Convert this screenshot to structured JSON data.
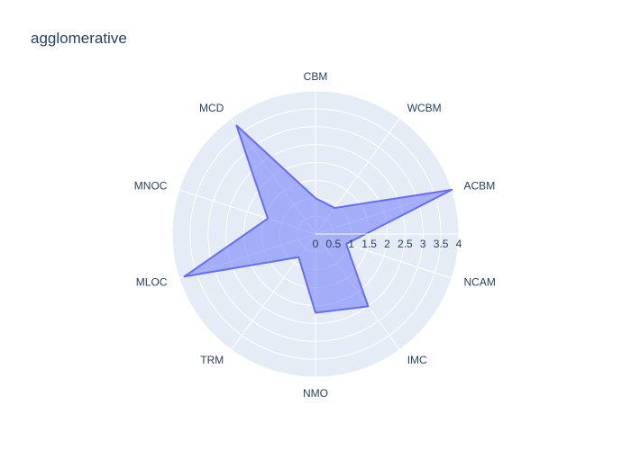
{
  "chart_data": {
    "type": "radar",
    "title": "agglomerative",
    "categories": [
      "CBM",
      "WCBM",
      "ACBM",
      "NCAM",
      "IMC",
      "NMO",
      "TRM",
      "MLOC",
      "MNOC",
      "MCD"
    ],
    "series": [
      {
        "values": [
          1.0,
          0.9,
          4.0,
          0.9,
          2.5,
          2.2,
          0.8,
          3.85,
          1.4,
          3.75
        ]
      }
    ],
    "radial_range": [
      0,
      4
    ],
    "radial_ticks": [
      "0",
      "0.5",
      "1",
      "1.5",
      "2",
      "2.5",
      "3",
      "3.5",
      "4"
    ],
    "fill_color": "#636efa",
    "background_color": "#e5ecf6",
    "grid": true
  }
}
